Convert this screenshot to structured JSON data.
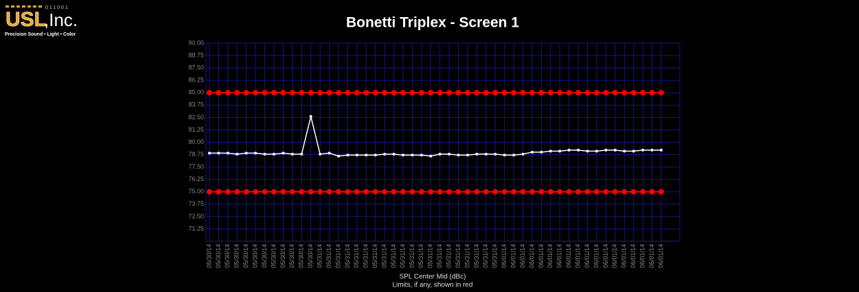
{
  "logo": {
    "mark": "USL",
    "suffix": ",Inc.",
    "code": "011001",
    "tagline": "Precision Sound • Light • Color"
  },
  "chart_data": {
    "type": "line",
    "title": "Bonetti Triplex - Screen 1",
    "xlabel": "SPL Center Mid (dBc)",
    "note": "Limits, if any, shown in red",
    "categories": [
      "05/30/14",
      "05/30/14",
      "05/30/14",
      "05/30/14",
      "05/30/14",
      "05/30/14",
      "05/30/14",
      "05/30/14",
      "05/30/14",
      "05/30/14",
      "05/30/14",
      "05/30/14",
      "05/31/14",
      "05/31/14",
      "05/31/14",
      "05/31/14",
      "05/31/14",
      "05/31/14",
      "05/31/14",
      "05/31/14",
      "05/31/14",
      "05/31/14",
      "05/31/14",
      "05/31/14",
      "05/31/14",
      "05/31/14",
      "05/31/14",
      "05/31/14",
      "05/31/14",
      "05/31/14",
      "05/31/14",
      "05/31/14",
      "06/01/14",
      "06/01/14",
      "06/01/14",
      "06/01/14",
      "06/01/14",
      "06/01/14",
      "06/01/14",
      "06/01/14",
      "06/01/14",
      "06/01/14",
      "06/01/14",
      "06/01/14",
      "06/01/14",
      "06/01/14",
      "06/01/14",
      "06/01/14",
      "06/01/14",
      "06/01/14"
    ],
    "series": [
      {
        "color": "#ff0000",
        "values": [
          85,
          85,
          85,
          85,
          85,
          85,
          85,
          85,
          85,
          85,
          85,
          85,
          85,
          85,
          85,
          85,
          85,
          85,
          85,
          85,
          85,
          85,
          85,
          85,
          85,
          85,
          85,
          85,
          85,
          85,
          85,
          85,
          85,
          85,
          85,
          85,
          85,
          85,
          85,
          85,
          85,
          85,
          85,
          85,
          85,
          85,
          85,
          85,
          85,
          85
        ]
      },
      {
        "color": "#ff0000",
        "values": [
          75,
          75,
          75,
          75,
          75,
          75,
          75,
          75,
          75,
          75,
          75,
          75,
          75,
          75,
          75,
          75,
          75,
          75,
          75,
          75,
          75,
          75,
          75,
          75,
          75,
          75,
          75,
          75,
          75,
          75,
          75,
          75,
          75,
          75,
          75,
          75,
          75,
          75,
          75,
          75,
          75,
          75,
          75,
          75,
          75,
          75,
          75,
          75,
          75,
          75
        ]
      },
      {
        "color": "#ffffff",
        "values": [
          78.9,
          78.9,
          78.9,
          78.8,
          78.9,
          78.9,
          78.8,
          78.8,
          78.9,
          78.8,
          78.8,
          82.6,
          78.8,
          78.9,
          78.6,
          78.7,
          78.7,
          78.7,
          78.7,
          78.8,
          78.8,
          78.7,
          78.7,
          78.7,
          78.6,
          78.8,
          78.8,
          78.7,
          78.7,
          78.8,
          78.8,
          78.8,
          78.7,
          78.7,
          78.8,
          79.0,
          79.0,
          79.1,
          79.1,
          79.2,
          79.2,
          79.1,
          79.1,
          79.2,
          79.2,
          79.1,
          79.1,
          79.2,
          79.2,
          79.2
        ]
      }
    ],
    "ylim": [
      70,
      90
    ],
    "yticks": [
      {
        "value": 71.25,
        "label": "71.25"
      },
      {
        "value": 72.5,
        "label": "72.50"
      },
      {
        "value": 73.75,
        "label": "73.75"
      },
      {
        "value": 75,
        "label": "75.00"
      },
      {
        "value": 76.25,
        "label": "76.25"
      },
      {
        "value": 77.5,
        "label": "77.50"
      },
      {
        "value": 78.75,
        "label": "78.75"
      },
      {
        "value": 80,
        "label": "80.00"
      },
      {
        "value": 81.25,
        "label": "81.25"
      },
      {
        "value": 82.5,
        "label": "82.50"
      },
      {
        "value": 83.75,
        "label": "83.75"
      },
      {
        "value": 85,
        "label": "85.00"
      },
      {
        "value": 86.25,
        "label": "86.25"
      },
      {
        "value": 87.5,
        "label": "87.50"
      },
      {
        "value": 88.75,
        "label": "88.75"
      },
      {
        "value": 90,
        "label": "90.00"
      }
    ],
    "grid": true
  }
}
